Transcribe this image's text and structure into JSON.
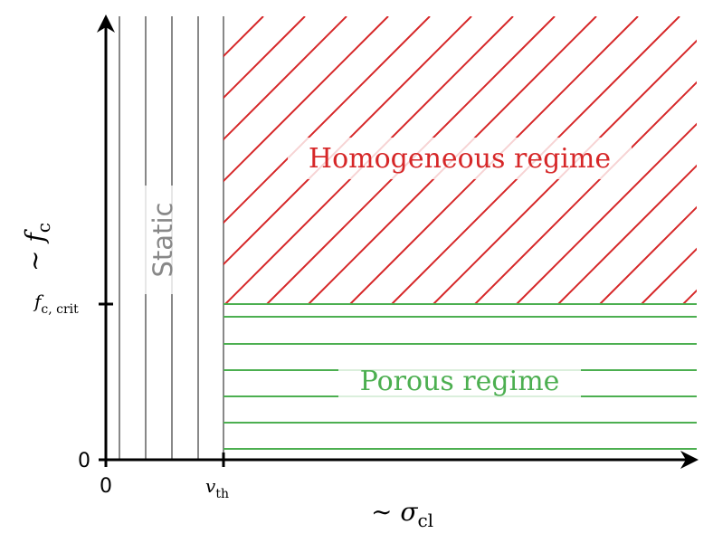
{
  "labels": {
    "homogeneous": "Homogeneous regime",
    "porous": "Porous regime",
    "static": "Static"
  },
  "x_axis": {
    "label": {
      "main": "∼ σ",
      "sub": "cl"
    },
    "ticks": [
      {
        "main": "0"
      },
      {
        "main": "v",
        "sub": "th"
      }
    ]
  },
  "y_axis": {
    "label": {
      "main": "∼ f",
      "sub": "c"
    },
    "ticks": [
      {
        "main": "0"
      },
      {
        "main": "f",
        "sub": "c, crit"
      }
    ]
  }
}
